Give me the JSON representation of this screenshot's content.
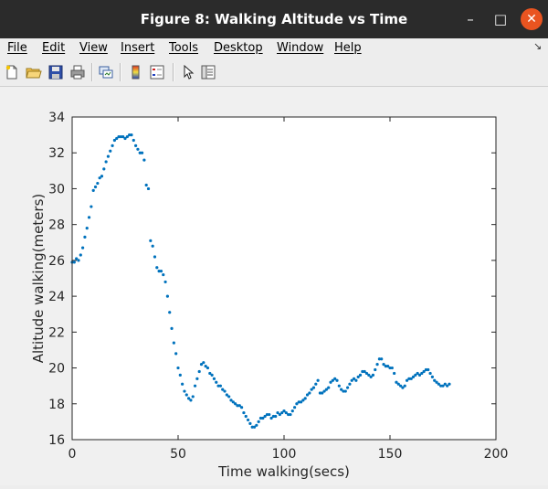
{
  "window": {
    "title": "Figure 8: Walking Altitude vs Time",
    "controls": {
      "minimize": "–",
      "maximize": "□",
      "close": "✕"
    }
  },
  "menu": [
    "File",
    "Edit",
    "View",
    "Insert",
    "Tools",
    "Desktop",
    "Window",
    "Help"
  ],
  "toolbar": {
    "icons": [
      "new-figure-icon",
      "open-file-icon",
      "save-icon",
      "print-icon",
      "link-plot-icon",
      "insert-colorbar-icon",
      "insert-legend-icon",
      "pointer-icon",
      "property-editor-icon"
    ]
  },
  "chart_data": {
    "type": "scatter",
    "xlabel": "Time walking(secs)",
    "ylabel": "Altitude walking(meters)",
    "xlim": [
      0,
      200
    ],
    "ylim": [
      16,
      34
    ],
    "xticks": [
      0,
      50,
      100,
      150,
      200
    ],
    "yticks": [
      16,
      18,
      20,
      22,
      24,
      26,
      28,
      30,
      32,
      34
    ],
    "color": "#0072bd",
    "grid": false,
    "points": [
      [
        0,
        25.9
      ],
      [
        1,
        25.9
      ],
      [
        2,
        26.1
      ],
      [
        3,
        26.0
      ],
      [
        4,
        26.3
      ],
      [
        5,
        26.7
      ],
      [
        6,
        27.3
      ],
      [
        7,
        27.8
      ],
      [
        8,
        28.4
      ],
      [
        9,
        29.0
      ],
      [
        10,
        29.9
      ],
      [
        11,
        30.1
      ],
      [
        12,
        30.3
      ],
      [
        13,
        30.6
      ],
      [
        14,
        30.7
      ],
      [
        15,
        31.1
      ],
      [
        16,
        31.5
      ],
      [
        17,
        31.8
      ],
      [
        18,
        32.1
      ],
      [
        19,
        32.4
      ],
      [
        20,
        32.7
      ],
      [
        21,
        32.8
      ],
      [
        22,
        32.9
      ],
      [
        23,
        32.9
      ],
      [
        24,
        32.9
      ],
      [
        25,
        32.8
      ],
      [
        26,
        32.9
      ],
      [
        27,
        33.0
      ],
      [
        28,
        33.0
      ],
      [
        29,
        32.7
      ],
      [
        30,
        32.4
      ],
      [
        31,
        32.2
      ],
      [
        32,
        32.0
      ],
      [
        33,
        32.0
      ],
      [
        34,
        31.6
      ],
      [
        35,
        30.2
      ],
      [
        36,
        30.0
      ],
      [
        37,
        27.1
      ],
      [
        38,
        26.8
      ],
      [
        39,
        26.2
      ],
      [
        40,
        25.6
      ],
      [
        41,
        25.4
      ],
      [
        42,
        25.4
      ],
      [
        43,
        25.2
      ],
      [
        44,
        24.8
      ],
      [
        45,
        24.0
      ],
      [
        46,
        23.1
      ],
      [
        47,
        22.2
      ],
      [
        48,
        21.4
      ],
      [
        49,
        20.8
      ],
      [
        50,
        20.0
      ],
      [
        51,
        19.6
      ],
      [
        52,
        19.1
      ],
      [
        53,
        18.7
      ],
      [
        54,
        18.5
      ],
      [
        55,
        18.3
      ],
      [
        56,
        18.2
      ],
      [
        57,
        18.4
      ],
      [
        58,
        19.0
      ],
      [
        59,
        19.4
      ],
      [
        60,
        19.8
      ],
      [
        61,
        20.2
      ],
      [
        62,
        20.3
      ],
      [
        63,
        20.1
      ],
      [
        64,
        20.0
      ],
      [
        65,
        19.7
      ],
      [
        66,
        19.6
      ],
      [
        67,
        19.4
      ],
      [
        68,
        19.2
      ],
      [
        69,
        19.0
      ],
      [
        70,
        19.0
      ],
      [
        71,
        18.8
      ],
      [
        72,
        18.7
      ],
      [
        73,
        18.5
      ],
      [
        74,
        18.4
      ],
      [
        75,
        18.2
      ],
      [
        76,
        18.1
      ],
      [
        77,
        18.0
      ],
      [
        78,
        17.9
      ],
      [
        79,
        17.9
      ],
      [
        80,
        17.8
      ],
      [
        81,
        17.5
      ],
      [
        82,
        17.3
      ],
      [
        83,
        17.1
      ],
      [
        84,
        16.9
      ],
      [
        85,
        16.7
      ],
      [
        86,
        16.7
      ],
      [
        87,
        16.8
      ],
      [
        88,
        17.0
      ],
      [
        89,
        17.2
      ],
      [
        90,
        17.2
      ],
      [
        91,
        17.3
      ],
      [
        92,
        17.4
      ],
      [
        93,
        17.4
      ],
      [
        94,
        17.2
      ],
      [
        95,
        17.3
      ],
      [
        96,
        17.3
      ],
      [
        97,
        17.5
      ],
      [
        98,
        17.4
      ],
      [
        99,
        17.5
      ],
      [
        100,
        17.6
      ],
      [
        101,
        17.5
      ],
      [
        102,
        17.4
      ],
      [
        103,
        17.4
      ],
      [
        104,
        17.6
      ],
      [
        105,
        17.8
      ],
      [
        106,
        18.0
      ],
      [
        107,
        18.1
      ],
      [
        108,
        18.1
      ],
      [
        109,
        18.2
      ],
      [
        110,
        18.3
      ],
      [
        111,
        18.5
      ],
      [
        112,
        18.6
      ],
      [
        113,
        18.8
      ],
      [
        114,
        18.9
      ],
      [
        115,
        19.1
      ],
      [
        116,
        19.3
      ],
      [
        117,
        18.6
      ],
      [
        118,
        18.6
      ],
      [
        119,
        18.7
      ],
      [
        120,
        18.8
      ],
      [
        121,
        18.9
      ],
      [
        122,
        19.2
      ],
      [
        123,
        19.3
      ],
      [
        124,
        19.4
      ],
      [
        125,
        19.3
      ],
      [
        126,
        19.0
      ],
      [
        127,
        18.8
      ],
      [
        128,
        18.7
      ],
      [
        129,
        18.7
      ],
      [
        130,
        18.9
      ],
      [
        131,
        19.1
      ],
      [
        132,
        19.3
      ],
      [
        133,
        19.4
      ],
      [
        134,
        19.3
      ],
      [
        135,
        19.5
      ],
      [
        136,
        19.6
      ],
      [
        137,
        19.8
      ],
      [
        138,
        19.8
      ],
      [
        139,
        19.7
      ],
      [
        140,
        19.6
      ],
      [
        141,
        19.5
      ],
      [
        142,
        19.6
      ],
      [
        143,
        19.9
      ],
      [
        144,
        20.2
      ],
      [
        145,
        20.5
      ],
      [
        146,
        20.5
      ],
      [
        147,
        20.2
      ],
      [
        148,
        20.1
      ],
      [
        149,
        20.1
      ],
      [
        150,
        20.0
      ],
      [
        151,
        20.0
      ],
      [
        152,
        19.7
      ],
      [
        153,
        19.2
      ],
      [
        154,
        19.1
      ],
      [
        155,
        19.0
      ],
      [
        156,
        18.9
      ],
      [
        157,
        19.0
      ],
      [
        158,
        19.3
      ],
      [
        159,
        19.4
      ],
      [
        160,
        19.4
      ],
      [
        161,
        19.5
      ],
      [
        162,
        19.6
      ],
      [
        163,
        19.7
      ],
      [
        164,
        19.6
      ],
      [
        165,
        19.7
      ],
      [
        166,
        19.8
      ],
      [
        167,
        19.9
      ],
      [
        168,
        19.9
      ],
      [
        169,
        19.7
      ],
      [
        170,
        19.5
      ],
      [
        171,
        19.3
      ],
      [
        172,
        19.2
      ],
      [
        173,
        19.1
      ],
      [
        174,
        19.0
      ],
      [
        175,
        19.0
      ],
      [
        176,
        19.1
      ],
      [
        177,
        19.0
      ],
      [
        178,
        19.1
      ]
    ]
  }
}
